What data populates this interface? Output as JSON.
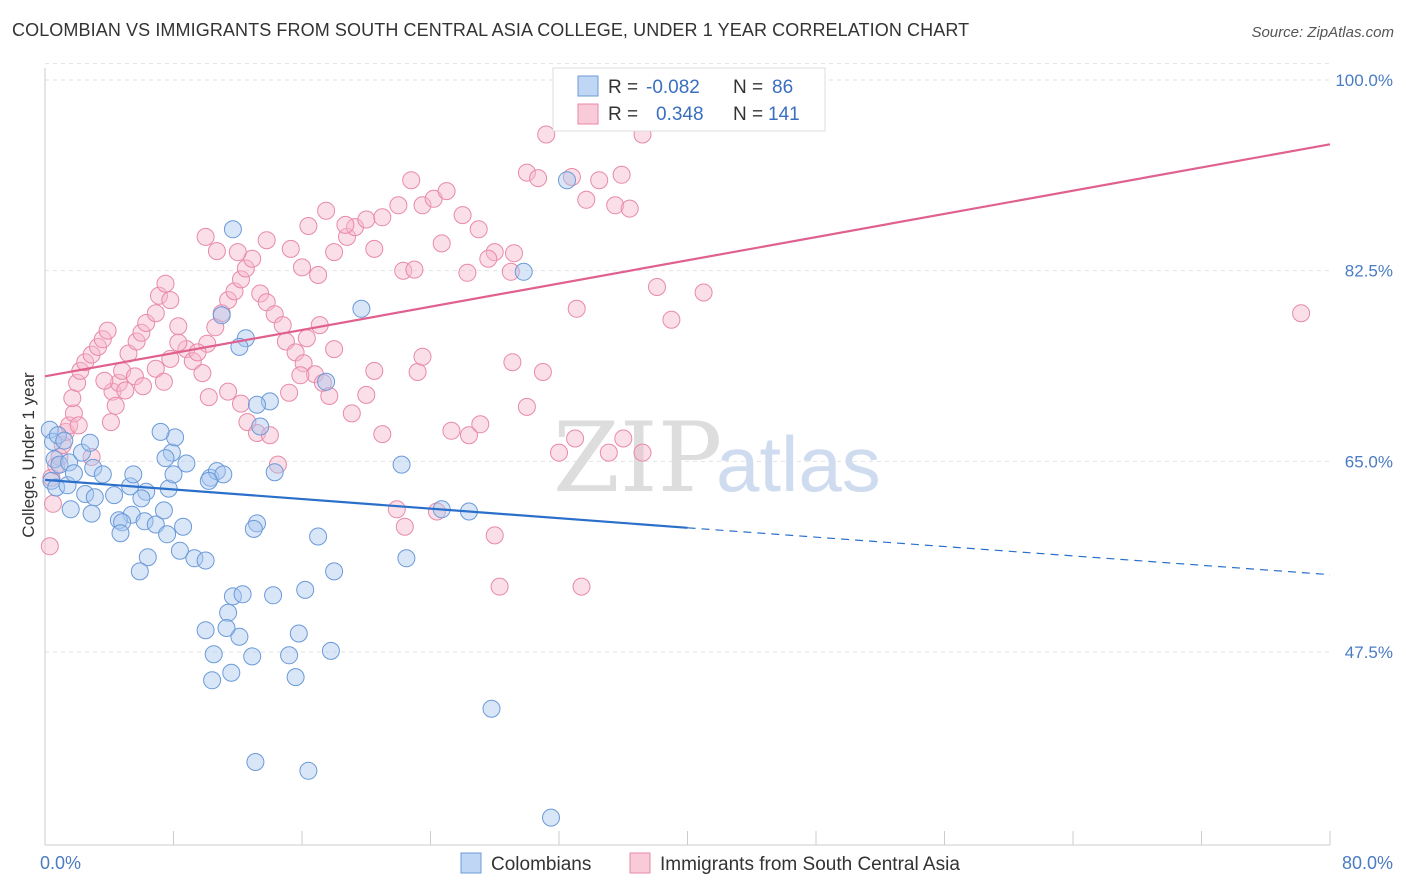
{
  "title": "COLOMBIAN VS IMMIGRANTS FROM SOUTH CENTRAL ASIA COLLEGE, UNDER 1 YEAR CORRELATION CHART",
  "source": "Source: ZipAtlas.com",
  "watermark": {
    "zip": "ZIP",
    "atlas": "atlas"
  },
  "colors": {
    "blue_fill": "#a9c8f0",
    "blue_stroke": "#6b9ad8",
    "blue_line": "#2a6fc9",
    "pink_fill": "#f7b8cb",
    "pink_stroke": "#e88aa8",
    "pink_line": "#e0608f",
    "grid": "#e2e2e2",
    "axis_text": "#4a7cc4"
  },
  "chart_data": {
    "type": "scatter",
    "title": "COLOMBIAN VS IMMIGRANTS FROM SOUTH CENTRAL ASIA COLLEGE, UNDER 1 YEAR CORRELATION CHART",
    "ylabel": "College, Under 1 year",
    "xlabel": "",
    "xlim": [
      0,
      80
    ],
    "ylim": [
      30,
      102
    ],
    "x_tick_labels": [
      {
        "value": 0,
        "label": "0.0%"
      },
      {
        "value": 80,
        "label": "80.0%"
      }
    ],
    "y_tick_labels": [
      {
        "value": 47.5,
        "label": "47.5%"
      },
      {
        "value": 65.0,
        "label": "65.0%"
      },
      {
        "value": 82.5,
        "label": "82.5%"
      },
      {
        "value": 100.0,
        "label": "100.0%"
      }
    ],
    "grid": "horizontal dashed",
    "legend_position": "top-center",
    "legend": [
      {
        "series": "Colombians",
        "r_label": "R =",
        "r_value": "-0.082",
        "n_label": "N =",
        "n_value": "86"
      },
      {
        "series": "Immigrants from South Central Asia",
        "r_label": "R =",
        "r_value": "0.348",
        "n_label": "N =",
        "n_value": "141"
      }
    ],
    "bottom_legend": [
      "Colombians",
      "Immigrants from South Central Asia"
    ],
    "series": [
      {
        "name": "Colombians",
        "color": "#a9c8f0",
        "trend": {
          "x0": 0,
          "y0": 63.3,
          "x1": 40,
          "y1": 58.9,
          "dashed_to_x": 80,
          "dashed_y": 54.6
        },
        "points": [
          [
            0.3,
            67.9
          ],
          [
            0.5,
            66.8
          ],
          [
            0.8,
            67.4
          ],
          [
            1.2,
            66.9
          ],
          [
            0.6,
            65.2
          ],
          [
            0.9,
            64.7
          ],
          [
            1.5,
            64.9
          ],
          [
            0.4,
            63.2
          ],
          [
            0.7,
            62.6
          ],
          [
            1.4,
            62.8
          ],
          [
            1.8,
            63.9
          ],
          [
            2.3,
            65.8
          ],
          [
            2.8,
            66.7
          ],
          [
            3.0,
            64.4
          ],
          [
            3.6,
            63.8
          ],
          [
            2.5,
            62.0
          ],
          [
            3.1,
            61.7
          ],
          [
            1.6,
            60.6
          ],
          [
            2.9,
            60.2
          ],
          [
            4.3,
            61.9
          ],
          [
            5.3,
            62.7
          ],
          [
            5.5,
            63.8
          ],
          [
            6.3,
            62.2
          ],
          [
            5.4,
            60.1
          ],
          [
            6.0,
            61.6
          ],
          [
            4.6,
            59.6
          ],
          [
            4.8,
            59.4
          ],
          [
            4.7,
            58.4
          ],
          [
            6.2,
            59.5
          ],
          [
            6.9,
            59.2
          ],
          [
            7.4,
            60.5
          ],
          [
            6.4,
            56.2
          ],
          [
            5.9,
            54.9
          ],
          [
            7.7,
            62.5
          ],
          [
            8.0,
            63.8
          ],
          [
            8.8,
            64.8
          ],
          [
            7.9,
            65.8
          ],
          [
            8.1,
            67.2
          ],
          [
            7.2,
            67.7
          ],
          [
            7.5,
            65.3
          ],
          [
            8.6,
            59.0
          ],
          [
            7.6,
            58.3
          ],
          [
            8.4,
            56.8
          ],
          [
            9.3,
            56.1
          ],
          [
            10.0,
            55.9
          ],
          [
            10.3,
            63.5
          ],
          [
            10.7,
            64.1
          ],
          [
            11.1,
            63.8
          ],
          [
            10.0,
            49.5
          ],
          [
            11.4,
            51.1
          ],
          [
            11.7,
            52.6
          ],
          [
            12.1,
            48.9
          ],
          [
            10.5,
            47.3
          ],
          [
            10.4,
            44.9
          ],
          [
            11.3,
            49.7
          ],
          [
            12.9,
            47.1
          ],
          [
            11.6,
            45.6
          ],
          [
            12.3,
            52.8
          ],
          [
            13.2,
            59.3
          ],
          [
            13.0,
            58.8
          ],
          [
            14.2,
            52.7
          ],
          [
            15.2,
            47.2
          ],
          [
            15.6,
            45.2
          ],
          [
            15.8,
            49.2
          ],
          [
            16.2,
            53.2
          ],
          [
            13.1,
            37.4
          ],
          [
            16.4,
            36.6
          ],
          [
            17.0,
            58.1
          ],
          [
            18.0,
            54.9
          ],
          [
            17.8,
            47.6
          ],
          [
            11.7,
            86.3
          ],
          [
            12.5,
            76.3
          ],
          [
            12.1,
            75.5
          ],
          [
            13.4,
            68.2
          ],
          [
            14.0,
            70.5
          ],
          [
            13.2,
            70.2
          ],
          [
            14.3,
            64.0
          ],
          [
            17.5,
            72.3
          ],
          [
            19.7,
            79.0
          ],
          [
            22.2,
            64.7
          ],
          [
            22.5,
            56.1
          ],
          [
            24.7,
            60.6
          ],
          [
            26.4,
            60.4
          ],
          [
            27.8,
            42.3
          ],
          [
            31.5,
            32.3
          ],
          [
            32.5,
            90.8
          ],
          [
            29.8,
            82.4
          ],
          [
            11.0,
            78.4
          ],
          [
            10.2,
            63.2
          ]
        ]
      },
      {
        "name": "Immigrants from South Central Asia",
        "color": "#f7b8cb",
        "trend": {
          "x0": 0,
          "y0": 72.8,
          "x1": 80,
          "y1": 94.1
        },
        "points": [
          [
            0.3,
            57.2
          ],
          [
            0.5,
            61.1
          ],
          [
            0.4,
            63.5
          ],
          [
            0.7,
            64.6
          ],
          [
            0.9,
            65.4
          ],
          [
            1.1,
            66.5
          ],
          [
            1.3,
            67.7
          ],
          [
            1.5,
            68.3
          ],
          [
            1.8,
            69.4
          ],
          [
            1.7,
            70.8
          ],
          [
            2.0,
            72.2
          ],
          [
            2.2,
            73.3
          ],
          [
            2.5,
            74.1
          ],
          [
            2.9,
            74.8
          ],
          [
            3.3,
            75.5
          ],
          [
            3.6,
            76.2
          ],
          [
            3.9,
            77.0
          ],
          [
            4.2,
            71.4
          ],
          [
            4.6,
            72.2
          ],
          [
            4.8,
            73.3
          ],
          [
            5.2,
            74.9
          ],
          [
            5.7,
            76.0
          ],
          [
            6.0,
            76.8
          ],
          [
            6.3,
            77.7
          ],
          [
            6.9,
            78.6
          ],
          [
            7.1,
            80.2
          ],
          [
            7.5,
            81.3
          ],
          [
            7.8,
            79.8
          ],
          [
            8.3,
            77.4
          ],
          [
            8.8,
            75.3
          ],
          [
            9.2,
            74.2
          ],
          [
            9.8,
            73.1
          ],
          [
            10.1,
            75.8
          ],
          [
            10.6,
            77.3
          ],
          [
            11.0,
            78.6
          ],
          [
            11.4,
            79.8
          ],
          [
            11.8,
            80.6
          ],
          [
            12.2,
            81.7
          ],
          [
            12.5,
            82.7
          ],
          [
            12.9,
            83.6
          ],
          [
            13.4,
            80.4
          ],
          [
            13.8,
            79.6
          ],
          [
            14.3,
            78.5
          ],
          [
            14.8,
            77.5
          ],
          [
            15.0,
            76.0
          ],
          [
            15.6,
            75.0
          ],
          [
            16.1,
            74.0
          ],
          [
            16.8,
            73.0
          ],
          [
            17.3,
            72.2
          ],
          [
            17.7,
            71.0
          ],
          [
            2.1,
            68.3
          ],
          [
            2.9,
            65.4
          ],
          [
            3.7,
            72.4
          ],
          [
            4.1,
            68.6
          ],
          [
            4.4,
            70.1
          ],
          [
            5.0,
            71.5
          ],
          [
            5.6,
            72.8
          ],
          [
            6.1,
            71.9
          ],
          [
            6.9,
            73.5
          ],
          [
            7.4,
            72.3
          ],
          [
            7.8,
            74.4
          ],
          [
            8.3,
            75.9
          ],
          [
            9.5,
            75.0
          ],
          [
            10.2,
            70.9
          ],
          [
            11.4,
            71.4
          ],
          [
            12.2,
            70.3
          ],
          [
            12.6,
            68.6
          ],
          [
            13.2,
            67.6
          ],
          [
            14.0,
            67.4
          ],
          [
            14.5,
            64.7
          ],
          [
            15.2,
            71.3
          ],
          [
            15.9,
            72.9
          ],
          [
            16.3,
            76.3
          ],
          [
            17.1,
            77.5
          ],
          [
            18.0,
            75.3
          ],
          [
            19.1,
            69.4
          ],
          [
            20.0,
            71.1
          ],
          [
            20.5,
            73.3
          ],
          [
            21.0,
            67.5
          ],
          [
            21.9,
            60.6
          ],
          [
            22.4,
            59.0
          ],
          [
            23.2,
            73.2
          ],
          [
            23.5,
            74.6
          ],
          [
            24.4,
            60.4
          ],
          [
            25.3,
            67.8
          ],
          [
            26.4,
            67.4
          ],
          [
            27.1,
            68.4
          ],
          [
            28.0,
            58.2
          ],
          [
            28.3,
            53.5
          ],
          [
            29.1,
            74.1
          ],
          [
            30.0,
            70.0
          ],
          [
            31.0,
            73.2
          ],
          [
            32.0,
            65.8
          ],
          [
            33.0,
            67.1
          ],
          [
            33.4,
            53.5
          ],
          [
            35.1,
            65.8
          ],
          [
            36.0,
            67.1
          ],
          [
            37.2,
            65.8
          ],
          [
            38.1,
            81.0
          ],
          [
            39.0,
            78.0
          ],
          [
            41.0,
            80.5
          ],
          [
            12.0,
            84.2
          ],
          [
            13.8,
            85.3
          ],
          [
            15.3,
            84.5
          ],
          [
            16.0,
            82.8
          ],
          [
            17.0,
            82.1
          ],
          [
            18.0,
            84.2
          ],
          [
            18.8,
            85.6
          ],
          [
            19.3,
            86.5
          ],
          [
            20.0,
            87.2
          ],
          [
            21.0,
            87.4
          ],
          [
            22.0,
            88.5
          ],
          [
            22.8,
            90.8
          ],
          [
            23.5,
            88.5
          ],
          [
            24.2,
            89.1
          ],
          [
            25.0,
            89.8
          ],
          [
            26.0,
            87.6
          ],
          [
            27.0,
            86.3
          ],
          [
            28.0,
            84.2
          ],
          [
            29.0,
            82.4
          ],
          [
            30.0,
            91.5
          ],
          [
            30.7,
            91.0
          ],
          [
            31.2,
            95.0
          ],
          [
            32.8,
            91.1
          ],
          [
            33.7,
            89.0
          ],
          [
            34.5,
            90.8
          ],
          [
            35.5,
            88.5
          ],
          [
            36.4,
            88.2
          ],
          [
            35.9,
            91.3
          ],
          [
            37.2,
            95.0
          ],
          [
            10.0,
            85.6
          ],
          [
            10.7,
            84.3
          ],
          [
            16.4,
            86.6
          ],
          [
            17.5,
            88.0
          ],
          [
            18.7,
            86.7
          ],
          [
            20.5,
            84.5
          ],
          [
            22.3,
            82.5
          ],
          [
            23.0,
            82.6
          ],
          [
            24.7,
            85.0
          ],
          [
            26.3,
            82.3
          ],
          [
            27.6,
            83.6
          ],
          [
            29.2,
            84.1
          ],
          [
            78.2,
            78.6
          ],
          [
            33.1,
            79.0
          ]
        ]
      }
    ]
  }
}
